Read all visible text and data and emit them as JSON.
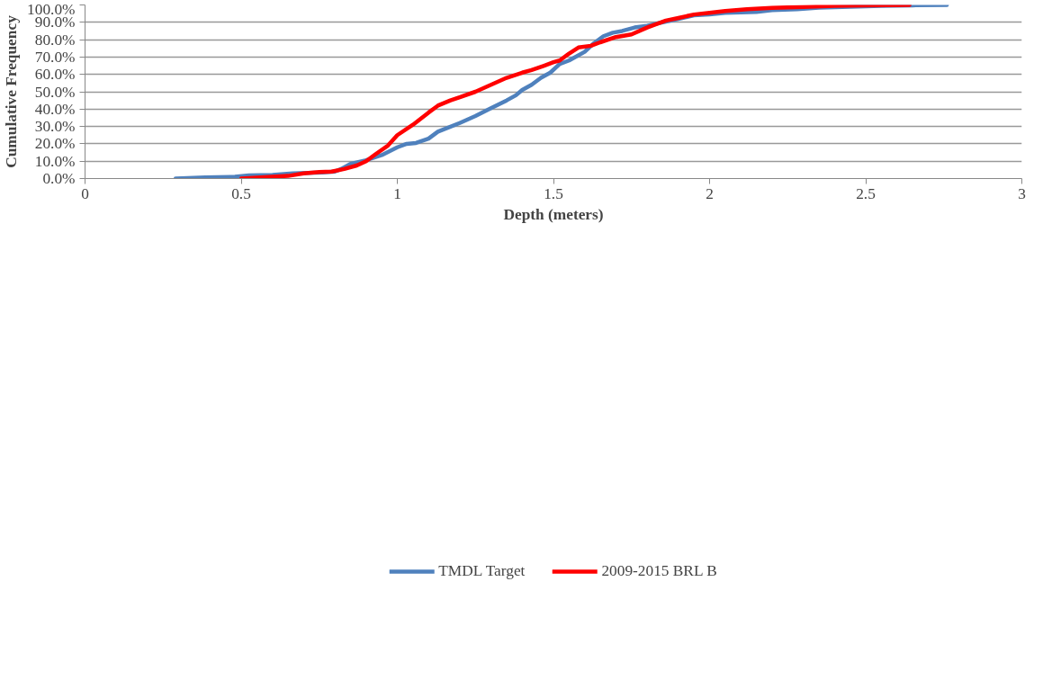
{
  "chart_data": {
    "type": "line",
    "xlabel": "Depth (meters)",
    "ylabel": "Cumulative Frequency",
    "xlim": [
      0,
      3
    ],
    "xticks": [
      0,
      0.5,
      1,
      1.5,
      2,
      2.5,
      3
    ],
    "ylim": [
      0,
      100
    ],
    "yticks": [
      {
        "value": 0,
        "label": "0.0%"
      },
      {
        "value": 10,
        "label": "10.0%"
      },
      {
        "value": 20,
        "label": "20.0%"
      },
      {
        "value": 30,
        "label": "30.0%"
      },
      {
        "value": 40,
        "label": "40.0%"
      },
      {
        "value": 50,
        "label": "50.0%"
      },
      {
        "value": 60,
        "label": "60.0%"
      },
      {
        "value": 70,
        "label": "70.0%"
      },
      {
        "value": 80,
        "label": "80.0%"
      },
      {
        "value": 90,
        "label": "90.0%"
      },
      {
        "value": 100,
        "label": "100.0%"
      }
    ],
    "grid": "y",
    "legend": "bottom",
    "marker": "none",
    "line_style": "solid",
    "series": [
      {
        "name": "TMDL Target",
        "color": "#4f81bd",
        "x": [
          0.29,
          0.385,
          0.48,
          0.525,
          0.6,
          0.665,
          0.76,
          0.8,
          0.82,
          0.85,
          0.9,
          0.95,
          1.0,
          1.03,
          1.06,
          1.1,
          1.13,
          1.2,
          1.25,
          1.3,
          1.35,
          1.38,
          1.4,
          1.43,
          1.46,
          1.49,
          1.52,
          1.55,
          1.6,
          1.63,
          1.66,
          1.69,
          1.72,
          1.76,
          1.8,
          1.85,
          1.9,
          1.95,
          2.0,
          2.05,
          2.15,
          2.2,
          2.28,
          2.35,
          2.45,
          2.55,
          2.65,
          2.76
        ],
        "values": [
          0,
          0.7,
          1.0,
          1.8,
          2.1,
          3.0,
          3.5,
          4.0,
          5.5,
          8.5,
          10.5,
          13.5,
          18,
          20,
          20.5,
          23,
          27,
          32,
          36,
          40.5,
          45,
          48,
          51,
          54,
          58,
          61,
          66,
          68,
          73,
          78,
          82,
          84,
          85,
          87,
          88,
          90,
          92,
          94,
          94.5,
          95.5,
          96,
          97,
          97.5,
          98.5,
          99,
          99.5,
          99.8,
          100
        ]
      },
      {
        "name": "2009-2015 BRL B",
        "color": "#ff0000",
        "x": [
          0.5,
          0.6,
          0.65,
          0.7,
          0.75,
          0.79,
          0.83,
          0.87,
          0.9,
          0.93,
          0.97,
          1.0,
          1.05,
          1.1,
          1.13,
          1.17,
          1.25,
          1.3,
          1.35,
          1.4,
          1.43,
          1.47,
          1.5,
          1.52,
          1.55,
          1.58,
          1.62,
          1.65,
          1.7,
          1.75,
          1.8,
          1.86,
          1.9,
          1.95,
          2.0,
          2.05,
          2.12,
          2.2,
          2.3,
          2.4,
          2.5,
          2.64
        ],
        "values": [
          0,
          1,
          1.5,
          3,
          3.8,
          4,
          5.5,
          7.5,
          10,
          14,
          19,
          25,
          31,
          38,
          42,
          45,
          50,
          54,
          58,
          61,
          62.5,
          65,
          67,
          68,
          72,
          75.5,
          76.5,
          78.5,
          81.5,
          83,
          87,
          91,
          92.5,
          94.5,
          95.5,
          96.5,
          97.5,
          98.3,
          98.8,
          99.5,
          99.8,
          100
        ]
      }
    ]
  }
}
